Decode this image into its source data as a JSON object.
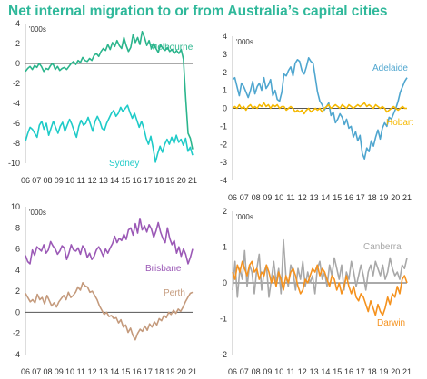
{
  "title": "Net internal migration to or from Australia’s capital cities",
  "colors": {
    "title": "#2fb89a",
    "text": "#333333"
  },
  "chart_data": [
    {
      "type": "line",
      "unit_label": "'000s",
      "x_tick_labels": [
        "06",
        "07",
        "08",
        "09",
        "10",
        "11",
        "12",
        "13",
        "14",
        "15",
        "16",
        "17",
        "18",
        "19",
        "20",
        "21"
      ],
      "ylim": [
        -10,
        4
      ],
      "y_ticks": [
        4,
        2,
        0,
        -2,
        -4,
        -6,
        -8,
        -10
      ],
      "series": [
        {
          "name": "Melbourne",
          "color": "#2bb58c",
          "values": [
            -0.8,
            -0.5,
            -0.3,
            -0.6,
            -0.2,
            -0.4,
            0.0,
            -0.3,
            -0.8,
            -0.5,
            -0.6,
            -0.2,
            0.0,
            -0.6,
            -0.3,
            -0.7,
            -0.5,
            -0.4,
            -0.6,
            -0.3,
            0.0,
            0.2,
            -0.1,
            0.3,
            0.1,
            0.6,
            0.3,
            0.2,
            0.5,
            0.3,
            0.8,
            1.0,
            0.7,
            1.2,
            1.5,
            1.3,
            1.9,
            1.4,
            2.1,
            1.7,
            2.3,
            1.8,
            1.5,
            2.6,
            1.8,
            1.2,
            1.6,
            2.9,
            2.1,
            2.6,
            1.9,
            3.2,
            2.6,
            1.8,
            2.3,
            1.5,
            2.0,
            1.5,
            1.1,
            1.9,
            1.5,
            1.3,
            1.6,
            1.2,
            1.4,
            1.0,
            1.3,
            1.0,
            1.4,
            0.4,
            -3.5,
            -7.0,
            -7.5,
            -8.6
          ]
        },
        {
          "name": "Sydney",
          "color": "#1fcbc8",
          "values": [
            -7.8,
            -7.0,
            -6.4,
            -6.6,
            -7.0,
            -7.4,
            -6.2,
            -5.8,
            -6.6,
            -6.0,
            -7.2,
            -6.5,
            -5.8,
            -6.4,
            -7.0,
            -6.3,
            -5.9,
            -6.8,
            -6.2,
            -5.6,
            -6.1,
            -6.8,
            -7.4,
            -6.3,
            -5.7,
            -6.2,
            -6.0,
            -5.4,
            -6.1,
            -6.8,
            -5.8,
            -5.3,
            -5.8,
            -6.5,
            -6.7,
            -6.0,
            -5.5,
            -5.0,
            -4.7,
            -5.3,
            -5.0,
            -4.4,
            -4.8,
            -4.5,
            -4.2,
            -4.9,
            -5.5,
            -5.0,
            -5.7,
            -6.4,
            -5.8,
            -6.5,
            -7.5,
            -8.1,
            -7.3,
            -8.5,
            -9.9,
            -9.0,
            -8.3,
            -8.9,
            -8.1,
            -7.6,
            -8.1,
            -7.4,
            -8.0,
            -7.2,
            -7.9,
            -7.6,
            -8.2,
            -7.5,
            -8.8,
            -8.4,
            -9.2
          ]
        }
      ]
    },
    {
      "type": "line",
      "unit_label": "'000s",
      "x_tick_labels": [
        "06",
        "07",
        "08",
        "09",
        "10",
        "11",
        "12",
        "13",
        "14",
        "15",
        "16",
        "17",
        "18",
        "19",
        "20",
        "21"
      ],
      "ylim": [
        -4,
        4
      ],
      "y_ticks": [
        4,
        3,
        2,
        1,
        0,
        -1,
        -2,
        -3,
        -4
      ],
      "series": [
        {
          "name": "Adelaide",
          "color": "#4fa6cf",
          "values": [
            1.6,
            1.7,
            1.2,
            0.7,
            1.4,
            1.2,
            0.9,
            0.6,
            1.0,
            1.5,
            0.8,
            1.2,
            1.4,
            1.0,
            1.7,
            1.1,
            1.3,
            1.6,
            0.7,
            1.0,
            0.5,
            0.4,
            0.9,
            1.9,
            1.8,
            2.1,
            2.3,
            1.8,
            2.5,
            2.7,
            2.6,
            2.1,
            1.9,
            2.3,
            2.8,
            2.6,
            2.5,
            1.7,
            0.9,
            0.4,
            0.2,
            -0.1,
            0.1,
            0.3,
            -0.4,
            -0.2,
            -0.8,
            -0.6,
            -0.3,
            -0.5,
            -0.9,
            -0.6,
            -1.1,
            -1.0,
            -1.6,
            -1.3,
            -1.8,
            -1.5,
            -2.5,
            -2.8,
            -2.2,
            -2.4,
            -1.8,
            -2.1,
            -1.6,
            -1.2,
            -1.7,
            -1.1,
            -0.8,
            -1.0,
            -0.5,
            -0.6,
            -0.3,
            0.0,
            0.4,
            0.9,
            1.2,
            1.5,
            1.7
          ]
        },
        {
          "name": "Hobart",
          "color": "#f5b800",
          "values": [
            0.0,
            0.1,
            0.0,
            0.2,
            0.0,
            0.1,
            -0.1,
            0.1,
            0.2,
            0.0,
            0.1,
            0.0,
            0.2,
            0.1,
            0.3,
            0.1,
            0.2,
            0.0,
            0.2,
            0.1,
            0.2,
            0.0,
            0.1,
            0.1,
            -0.1,
            0.0,
            0.1,
            0.0,
            -0.2,
            -0.1,
            -0.2,
            -0.1,
            -0.3,
            -0.1,
            0.0,
            -0.2,
            -0.1,
            0.0,
            -0.1,
            0.0,
            -0.2,
            0.0,
            0.1,
            0.2,
            0.0,
            0.1,
            0.2,
            0.1,
            0.0,
            0.2,
            0.1,
            0.0,
            0.2,
            0.1,
            0.0,
            0.1,
            0.2,
            0.1,
            0.2,
            0.3,
            0.1,
            0.2,
            0.1,
            0.0,
            0.2,
            0.1,
            0.0,
            0.1,
            0.0,
            -0.2,
            -0.1,
            0.0,
            0.1,
            0.0,
            -0.1,
            0.0,
            0.1,
            0.0,
            0.0
          ]
        }
      ]
    },
    {
      "type": "line",
      "unit_label": "'000s",
      "x_tick_labels": [
        "06",
        "07",
        "08",
        "09",
        "10",
        "11",
        "12",
        "13",
        "14",
        "15",
        "16",
        "17",
        "18",
        "19",
        "20",
        "21"
      ],
      "ylim": [
        -4,
        10
      ],
      "y_ticks": [
        10,
        8,
        6,
        4,
        2,
        0,
        -2,
        -4
      ],
      "series": [
        {
          "name": "Brisbane",
          "color": "#9b59b6",
          "values": [
            5.4,
            4.8,
            4.6,
            5.9,
            5.4,
            6.2,
            6.0,
            5.8,
            6.4,
            5.6,
            5.9,
            6.7,
            6.3,
            6.0,
            5.5,
            5.8,
            6.3,
            6.1,
            5.0,
            5.6,
            6.4,
            5.9,
            5.8,
            6.1,
            5.5,
            6.3,
            6.0,
            5.2,
            5.6,
            5.0,
            5.3,
            5.9,
            6.2,
            5.8,
            5.3,
            6.0,
            5.6,
            6.1,
            6.5,
            7.2,
            6.6,
            7.0,
            6.8,
            7.4,
            6.9,
            7.8,
            8.0,
            7.3,
            8.4,
            7.5,
            8.9,
            7.8,
            8.2,
            7.6,
            8.3,
            7.9,
            7.1,
            7.7,
            8.5,
            7.6,
            7.0,
            6.6,
            8.0,
            7.0,
            6.4,
            6.8,
            5.6,
            6.2,
            5.3,
            6.0,
            5.5,
            4.6,
            5.2,
            6.0
          ]
        },
        {
          "name": "Perth",
          "color": "#c49a7c",
          "values": [
            1.8,
            1.4,
            1.0,
            1.2,
            0.9,
            1.7,
            1.2,
            1.4,
            0.8,
            1.6,
            1.1,
            0.6,
            0.9,
            0.5,
            1.0,
            1.3,
            1.6,
            1.2,
            1.9,
            1.4,
            1.6,
            1.9,
            2.4,
            2.1,
            2.8,
            2.5,
            2.4,
            1.9,
            2.0,
            1.6,
            1.2,
            0.6,
            0.2,
            -0.2,
            0.0,
            -0.4,
            -0.3,
            -0.6,
            -0.5,
            -1.0,
            -0.7,
            -1.4,
            -1.2,
            -1.9,
            -1.5,
            -2.2,
            -2.6,
            -2.0,
            -1.6,
            -1.8,
            -1.3,
            -1.7,
            -1.1,
            -1.4,
            -0.9,
            -1.2,
            -0.6,
            -0.8,
            -0.3,
            -0.5,
            0.0,
            -0.2,
            0.2,
            -0.1,
            0.3,
            0.1,
            0.5,
            1.0,
            1.4,
            1.8,
            1.9
          ]
        }
      ]
    },
    {
      "type": "line",
      "unit_label": "'000s",
      "x_tick_labels": [
        "06",
        "07",
        "08",
        "09",
        "10",
        "11",
        "12",
        "13",
        "14",
        "15",
        "16",
        "17",
        "18",
        "19",
        "20",
        "21"
      ],
      "ylim": [
        -2,
        2
      ],
      "y_ticks": [
        2,
        1,
        0,
        -1,
        -2
      ],
      "series": [
        {
          "name": "Canberra",
          "color": "#a8a8a8",
          "values": [
            -0.2,
            0.6,
            -0.4,
            0.4,
            0.1,
            0.9,
            -0.1,
            0.5,
            0.3,
            -0.3,
            0.4,
            0.8,
            -0.2,
            0.3,
            0.5,
            -0.4,
            0.1,
            0.6,
            0.0,
            0.4,
            -0.3,
            1.2,
            0.2,
            -0.1,
            0.5,
            0.3,
            -0.2,
            0.4,
            0.1,
            0.6,
            -0.1,
            0.3,
            0.0,
            0.2,
            -0.3,
            0.4,
            0.6,
            0.1,
            0.3,
            -0.1,
            0.5,
            0.2,
            0.7,
            0.4,
            0.1,
            0.5,
            -0.2,
            0.3,
            0.1,
            0.6,
            0.3,
            -0.1,
            0.2,
            0.5,
            0.2,
            -0.2,
            0.3,
            0.5,
            0.2,
            0.6,
            0.4,
            0.2,
            0.5,
            0.1,
            0.3,
            0.7,
            0.4,
            0.2,
            0.3,
            0.1,
            0.5,
            0.4,
            0.7
          ]
        },
        {
          "name": "Darwin",
          "color": "#f5921e",
          "values": [
            0.3,
            0.1,
            0.5,
            0.3,
            0.6,
            0.4,
            0.2,
            0.5,
            0.6,
            0.3,
            0.4,
            0.1,
            0.3,
            0.2,
            0.5,
            0.3,
            0.0,
            0.2,
            -0.1,
            0.3,
            0.1,
            -0.2,
            0.2,
            0.0,
            0.3,
            0.4,
            0.2,
            -0.1,
            -0.3,
            -0.2,
            0.1,
            0.0,
            0.2,
            0.4,
            0.3,
            0.5,
            0.2,
            0.4,
            0.3,
            0.1,
            -0.1,
            0.2,
            0.1,
            -0.2,
            0.0,
            -0.3,
            -0.1,
            0.2,
            -0.1,
            -0.3,
            -0.1,
            -0.4,
            -0.5,
            -0.3,
            -0.4,
            -0.6,
            -0.8,
            -0.5,
            -0.7,
            -0.9,
            -0.6,
            -0.8,
            -0.9,
            -0.7,
            -0.4,
            -0.6,
            -0.3,
            -0.4,
            -0.1,
            -0.3,
            0.1,
            0.2,
            0.0
          ]
        }
      ]
    }
  ]
}
